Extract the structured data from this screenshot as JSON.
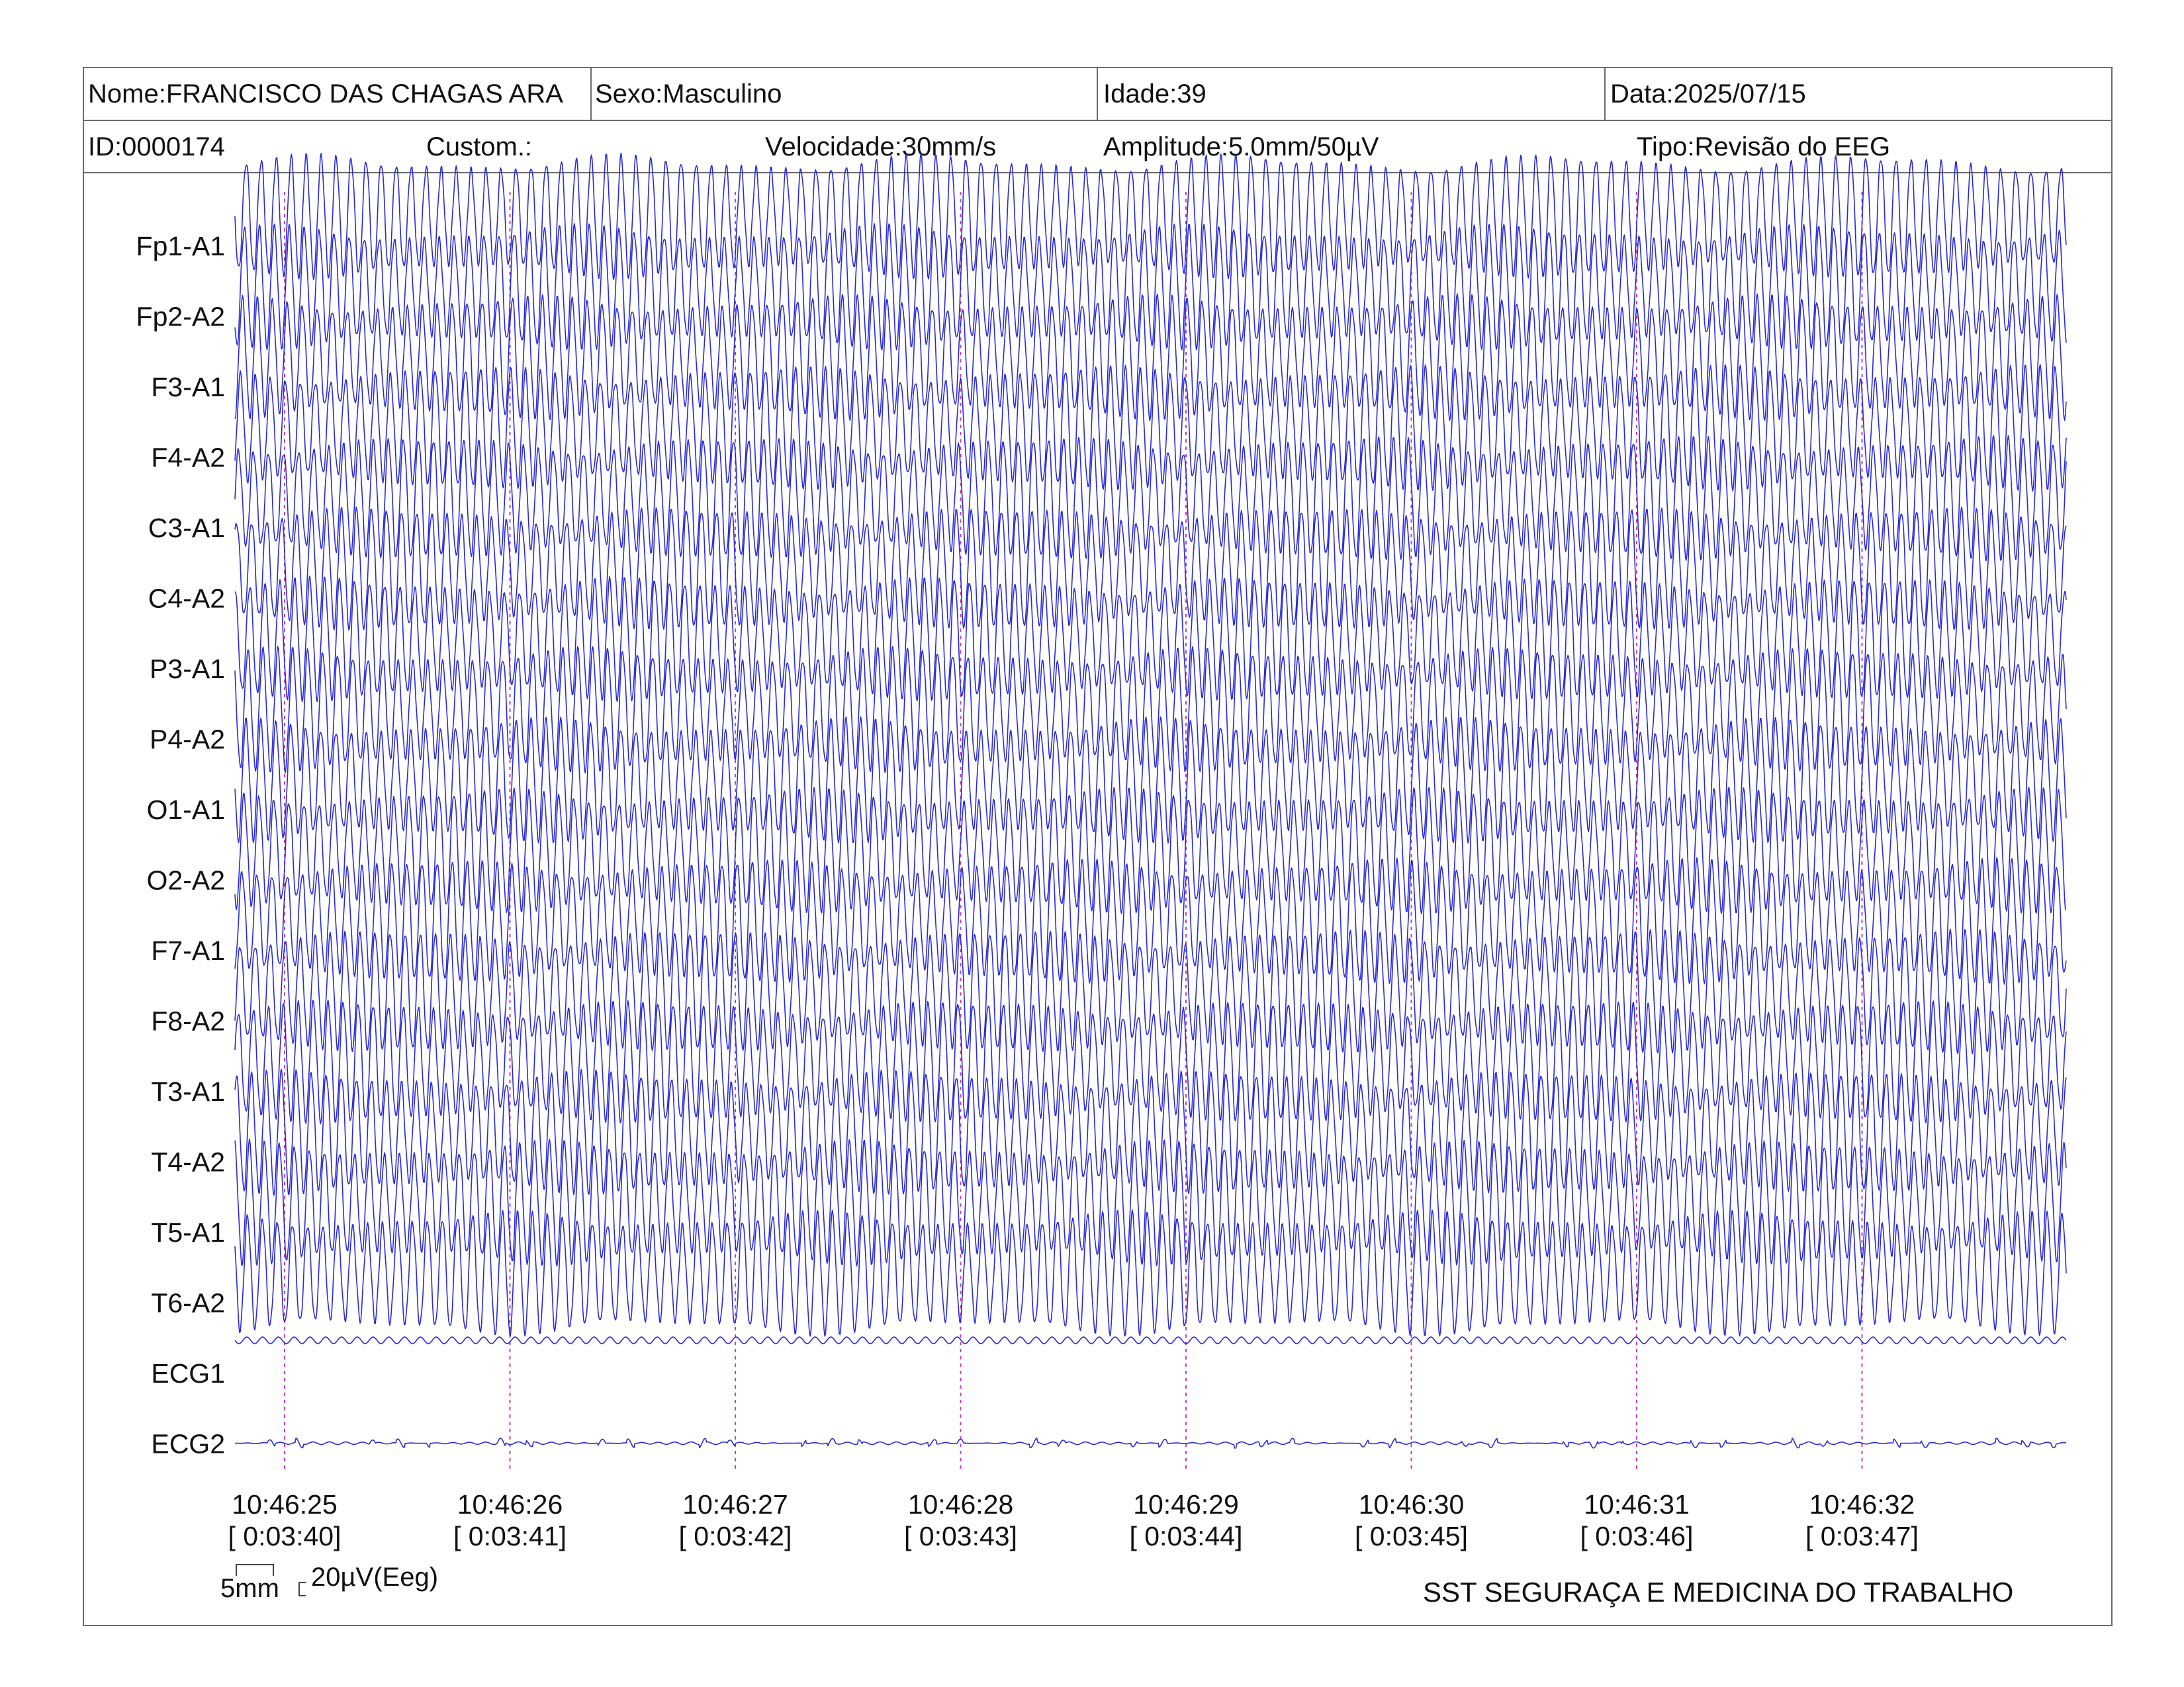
{
  "header": {
    "name": "Nome:FRANCISCO DAS CHAGAS ARA",
    "sex": "Sexo:Masculino",
    "age": "Idade:39",
    "date": "Data:2025/07/15",
    "id": "ID:0000174",
    "custom": "Custom.:",
    "speed": "Velocidade:30mm/s",
    "amplitude": "Amplitude:5.0mm/50µV",
    "type": "Tipo:Revisão do EEG"
  },
  "chart_data": {
    "type": "line",
    "channels": [
      "Fp1-A1",
      "Fp2-A2",
      "F3-A1",
      "F4-A2",
      "C3-A1",
      "C4-A2",
      "P3-A1",
      "P4-A2",
      "O1-A1",
      "O2-A2",
      "F7-A1",
      "F8-A2",
      "T3-A1",
      "T4-A2",
      "T5-A1",
      "T6-A2",
      "ECG1",
      "ECG2"
    ],
    "time_labels": [
      "10:46:25",
      "10:46:26",
      "10:46:27",
      "10:46:28",
      "10:46:29",
      "10:46:30",
      "10:46:31",
      "10:46:32"
    ],
    "elapsed_labels": [
      "[ 0:03:40]",
      "[ 0:03:41]",
      "[ 0:03:42]",
      "[ 0:03:43]",
      "[ 0:03:44]",
      "[ 0:03:45]",
      "[ 0:03:46]",
      "[ 0:03:47]"
    ],
    "eeg_cycles_per_second": 15,
    "seconds_shown": 8.14,
    "trace_color": "#2a2ad6",
    "marker_color": "#c040c0"
  },
  "scale": {
    "time_bar": "5mm",
    "amplitude_bar": "20µV(Eeg)"
  },
  "footer": {
    "company": "SST SEGURAÇA E MEDICINA DO TRABALHO"
  }
}
